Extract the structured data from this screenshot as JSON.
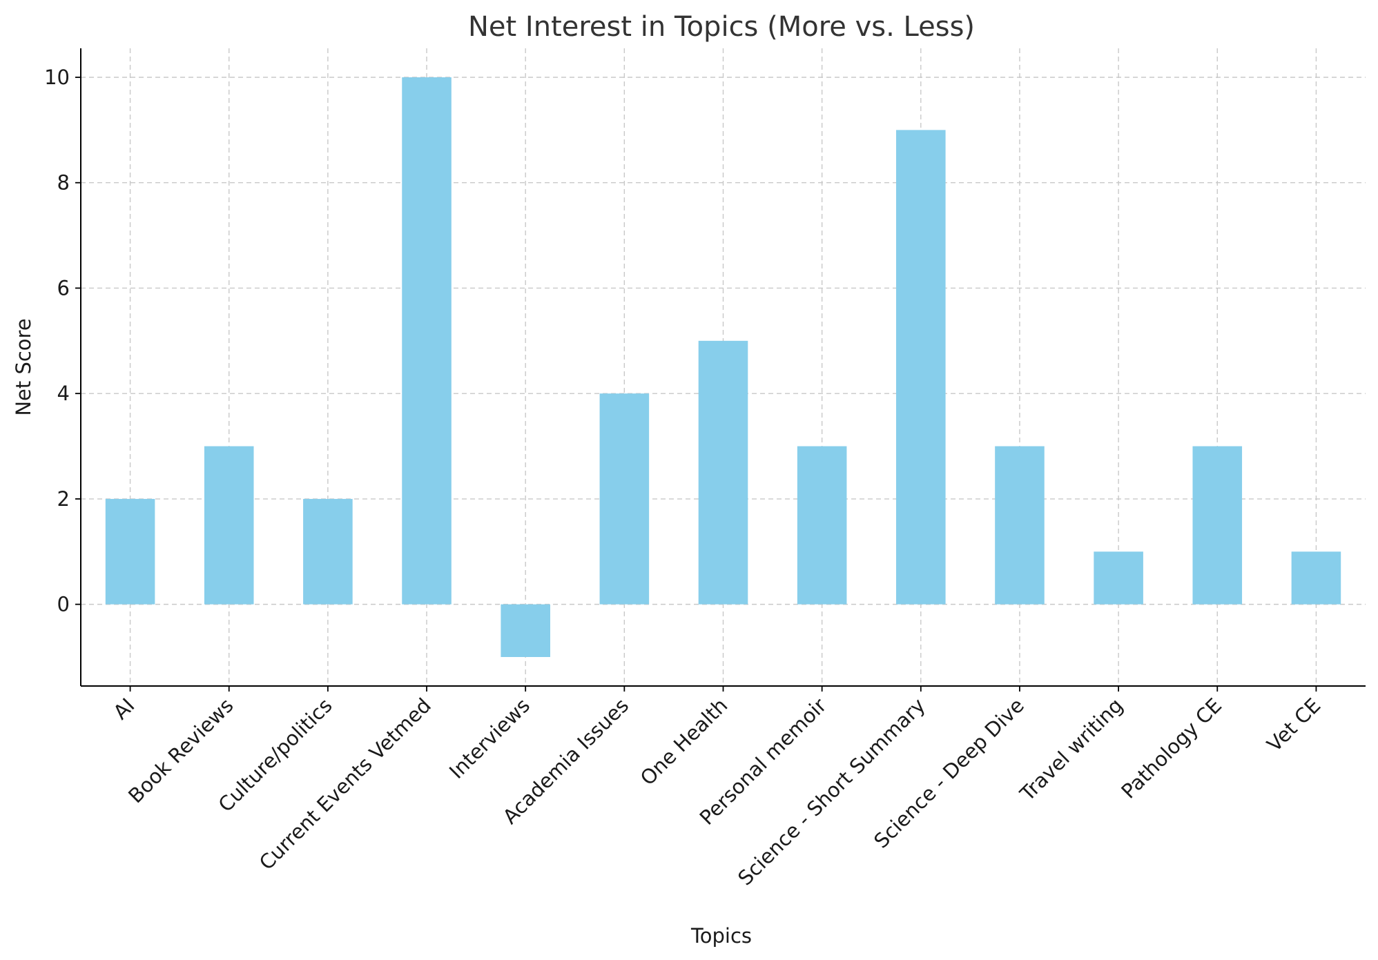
{
  "chart_data": {
    "type": "bar",
    "title": "Net Interest in Topics (More vs. Less)",
    "xlabel": "Topics",
    "ylabel": "Net Score",
    "categories": [
      "AI",
      "Book Reviews",
      "Culture/politics",
      "Current Events Vetmed",
      "Interviews",
      "Academia Issues",
      "One Health",
      "Personal memoir",
      "Science - Short Summary",
      "Science - Deep Dive",
      "Travel writing",
      "Pathology CE",
      "Vet CE"
    ],
    "values": [
      2,
      3,
      2,
      10,
      -1,
      4,
      5,
      3,
      9,
      3,
      1,
      3,
      1
    ],
    "ylim": [
      -1.55,
      10.55
    ],
    "yticks": [
      0,
      2,
      4,
      6,
      8,
      10
    ],
    "grid": true,
    "bar_color": "#87CEEB",
    "legend": "none"
  }
}
